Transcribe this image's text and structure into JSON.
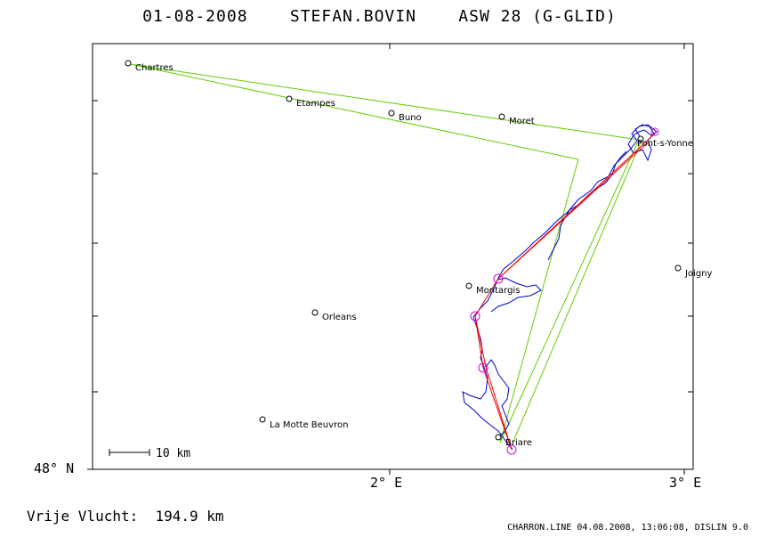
{
  "title": "01-08-2008    STEFAN.BOVIN    ASW 28 (G-GLID)",
  "axes": {
    "y_label": "48° N",
    "x_labels": [
      "2° E",
      "3° E"
    ]
  },
  "scale_bar": "10 km",
  "towns": [
    {
      "name": "Chartres"
    },
    {
      "name": "Etampes"
    },
    {
      "name": "Buno"
    },
    {
      "name": "Moret"
    },
    {
      "name": "Pont-s-Yonne"
    },
    {
      "name": "Joigny"
    },
    {
      "name": "Montargis"
    },
    {
      "name": "Orleans"
    },
    {
      "name": "La Motte Beuvron"
    },
    {
      "name": "Briare"
    }
  ],
  "footer": {
    "distance_label": "Vrije Vlucht:",
    "distance_value": "194.9 km",
    "source": "CHARRON.LINE 04.08.2008, 13:06:08, DISLIN 9.0"
  },
  "colors": {
    "task_line": "#66cc00",
    "flight_track": "#0000cc",
    "optimized_route": "#ee0000",
    "turnpoint": "#dd00dd"
  }
}
